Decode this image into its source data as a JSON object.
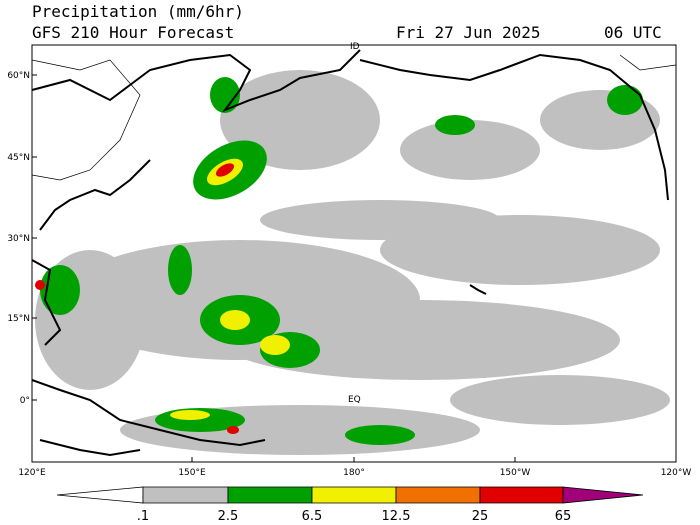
{
  "header": {
    "title": "Precipitation (mm/6hr)",
    "subtitle": "GFS 210 Hour Forecast",
    "date": "Fri 27 Jun 2025",
    "time": "06 UTC"
  },
  "map": {
    "lat_labels": [
      "60°N",
      "45°N",
      "30°N",
      "15°N",
      "0°"
    ],
    "lon_labels": [
      "120°E",
      "150°E",
      "180°",
      "150°W",
      "120°W"
    ],
    "place_labels": [
      "ID",
      "EQ"
    ]
  },
  "legend": {
    "labels": [
      ".1",
      "2.5",
      "6.5",
      "12.5",
      "25",
      "65"
    ],
    "colors": [
      "#ffffff",
      "#c0c0c0",
      "#00a000",
      "#f0f000",
      "#f07000",
      "#e00000",
      "#a00078"
    ]
  }
}
